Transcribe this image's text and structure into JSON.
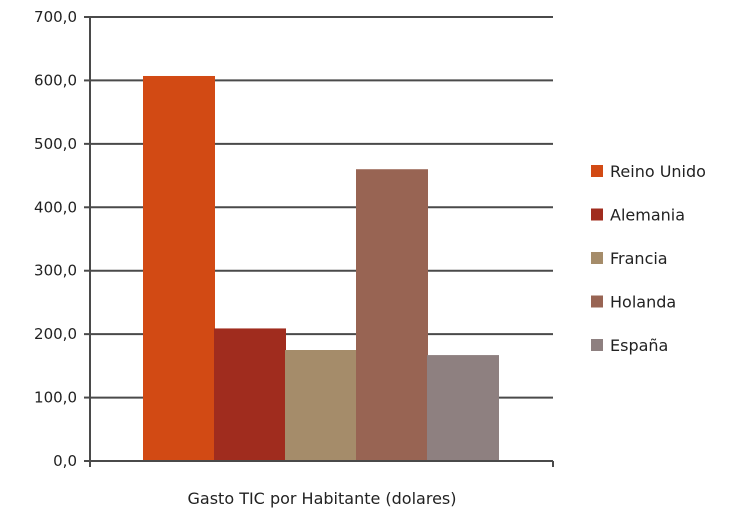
{
  "chart_data": {
    "type": "bar",
    "title": "",
    "xlabel": "Gasto TIC por Habitante (dolares)",
    "ylabel": "",
    "categories": [
      "Gasto TIC por Habitante (dolares)"
    ],
    "series": [
      {
        "name": "Reino Unido",
        "values": [
          607
        ],
        "color": "#D24A14"
      },
      {
        "name": "Alemania",
        "values": [
          209
        ],
        "color": "#A02C1E"
      },
      {
        "name": "Francia",
        "values": [
          175
        ],
        "color": "#A58C6A"
      },
      {
        "name": "Holanda",
        "values": [
          460
        ],
        "color": "#986453"
      },
      {
        "name": "España",
        "values": [
          167
        ],
        "color": "#8E8080"
      }
    ],
    "ylim": [
      0,
      700
    ],
    "yticks": [
      "0,0",
      "100,0",
      "200,0",
      "300,0",
      "400,0",
      "500,0",
      "600,0",
      "700,0"
    ],
    "grid": true,
    "legend": "right"
  }
}
